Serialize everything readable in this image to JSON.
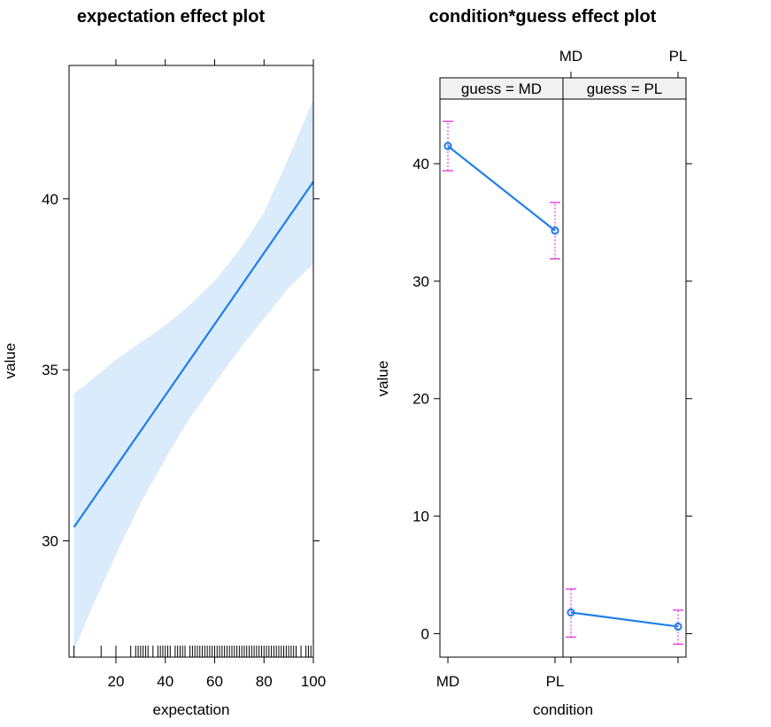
{
  "chart_data": [
    {
      "type": "line",
      "title": "expectation effect plot",
      "xlabel": "expectation",
      "ylabel": "value",
      "xlim": [
        1,
        100
      ],
      "ylim": [
        26.6,
        43.9
      ],
      "x_ticks": [
        20,
        40,
        60,
        80,
        100
      ],
      "y_ticks": [
        30,
        35,
        40
      ],
      "series": [
        {
          "x": [
            3,
            100
          ],
          "y": [
            30.4,
            40.5
          ],
          "ci_x": [
            3,
            10,
            20,
            30,
            40,
            50,
            60,
            70,
            80,
            90,
            100
          ],
          "ci_lower": [
            26.8,
            28.0,
            29.6,
            31.1,
            32.4,
            33.6,
            34.6,
            35.6,
            36.5,
            37.4,
            38.1
          ],
          "ci_upper": [
            34.3,
            34.7,
            35.3,
            35.8,
            36.3,
            36.9,
            37.6,
            38.5,
            39.6,
            41.2,
            42.9
          ]
        }
      ],
      "rug": [
        3,
        14,
        20,
        26,
        28,
        29,
        30,
        31,
        32,
        33,
        35,
        37,
        38,
        39,
        40,
        41,
        42,
        44,
        45,
        46,
        47,
        48,
        50,
        51,
        52,
        53,
        54,
        55,
        56,
        57,
        58,
        59,
        60,
        61,
        62,
        63,
        64,
        65,
        66,
        67,
        68,
        69,
        70,
        71,
        72,
        73,
        74,
        75,
        76,
        77,
        78,
        79,
        80,
        81,
        82,
        83,
        84,
        85,
        86,
        87,
        88,
        89,
        90,
        91,
        92,
        93,
        95,
        97,
        98,
        99,
        100
      ]
    },
    {
      "type": "line",
      "title": "condition*guess effect plot",
      "xlabel": "condition",
      "ylabel": "value",
      "categories": [
        "MD",
        "PL"
      ],
      "ylim": [
        -2,
        45.5
      ],
      "y_ticks": [
        0,
        10,
        20,
        30,
        40
      ],
      "panels": [
        {
          "strip": "guess = MD",
          "values": [
            41.5,
            34.3
          ],
          "lower": [
            39.4,
            31.9
          ],
          "upper": [
            43.6,
            36.7
          ]
        },
        {
          "strip": "guess = PL",
          "values": [
            1.8,
            0.6
          ],
          "lower": [
            -0.3,
            -0.9
          ],
          "upper": [
            3.8,
            2.0
          ]
        }
      ]
    }
  ],
  "colors": {
    "line": "#1e7fe8",
    "band": "#daebfc",
    "errorbar": "#e040e0",
    "strip_bg": "#f2f2f2"
  }
}
